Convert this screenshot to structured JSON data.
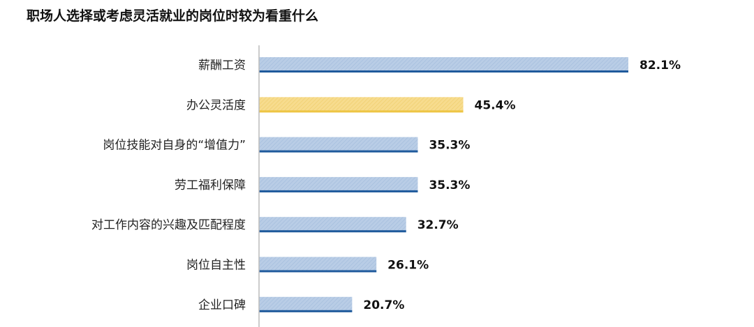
{
  "title": "职场人选择或考虑灵活就业的岗位时较为看重什么",
  "chart_data": {
    "type": "bar",
    "orientation": "horizontal",
    "title": "职场人选择或考虑灵活就业的岗位时较为看重什么",
    "categories": [
      "薪酬工资",
      "办公灵活度",
      "岗位技能对自身的“增值力”",
      "劳工福利保障",
      "对工作内容的兴趣及匹配程度",
      "岗位自主性",
      "企业口碑"
    ],
    "values": [
      82.1,
      45.4,
      35.3,
      35.3,
      32.7,
      26.1,
      20.7
    ],
    "labels": [
      "82.1%",
      "45.4%",
      "35.3%",
      "35.3%",
      "32.7%",
      "26.1%",
      "20.7%"
    ],
    "highlight_index": 1,
    "unit": "%",
    "colors": {
      "bar": "#b9cde6",
      "bar_edge": "#1f5a9c",
      "highlight": "#f7dc8e",
      "highlight_edge": "#eec545",
      "axis": "#bbbbbb"
    },
    "grid": false,
    "legend": "none"
  }
}
